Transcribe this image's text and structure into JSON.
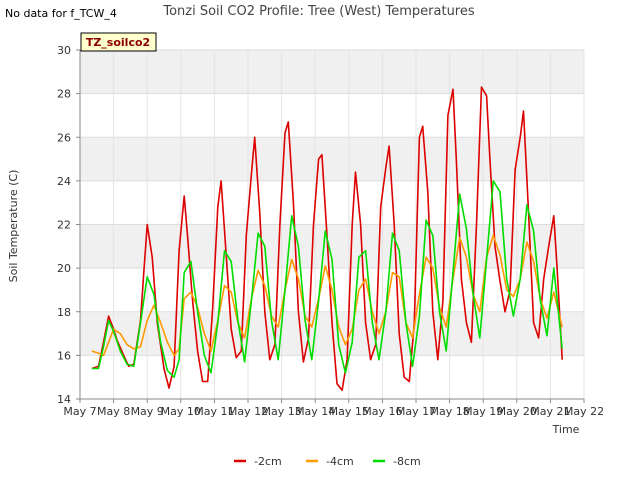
{
  "chart_data": {
    "type": "line",
    "title": "Tonzi Soil CO2 Profile: Tree (West) Temperatures",
    "corner_note": "No data for f_TCW_4",
    "badge": "TZ_soilco2",
    "xlabel": "Time",
    "ylabel": "Soil Temperature (C)",
    "xlim": [
      7.0,
      22.0
    ],
    "ylim": [
      14,
      30
    ],
    "x_ticks": [
      7,
      8,
      9,
      10,
      11,
      12,
      13,
      14,
      15,
      16,
      17,
      18,
      19,
      20,
      21,
      22
    ],
    "x_tick_labels": [
      "May 7",
      "May 8",
      "May 9",
      "May 10",
      "May 11",
      "May 12",
      "May 13",
      "May 14",
      "May 15",
      "May 16",
      "May 17",
      "May 18",
      "May 19",
      "May 20",
      "May 21",
      "May 22"
    ],
    "y_ticks": [
      14,
      16,
      18,
      20,
      22,
      24,
      26,
      28,
      30
    ],
    "y_tick_labels": [
      "14",
      "16",
      "18",
      "20",
      "22",
      "24",
      "26",
      "28",
      "30"
    ],
    "grid": true,
    "legend_position": "bottom-center",
    "colors": {
      "plot_bg": "#f0f0f0",
      "band_alt": "#ffffff",
      "badge_bg": "#ffffcc",
      "badge_border": "#000000"
    },
    "series": [
      {
        "name": "-2cm",
        "color": "#dd0000",
        "x": [
          7.35,
          7.55,
          7.7,
          7.85,
          8.0,
          8.1,
          8.3,
          8.45,
          8.6,
          8.8,
          8.9,
          9.0,
          9.15,
          9.3,
          9.5,
          9.65,
          9.8,
          9.95,
          10.1,
          10.2,
          10.35,
          10.5,
          10.65,
          10.8,
          10.95,
          11.1,
          11.2,
          11.35,
          11.5,
          11.65,
          11.8,
          11.95,
          12.1,
          12.2,
          12.35,
          12.5,
          12.65,
          12.8,
          12.95,
          13.1,
          13.2,
          13.35,
          13.5,
          13.65,
          13.8,
          13.95,
          14.1,
          14.2,
          14.35,
          14.5,
          14.65,
          14.8,
          14.95,
          15.1,
          15.2,
          15.35,
          15.5,
          15.65,
          15.8,
          15.95,
          16.1,
          16.2,
          16.35,
          16.5,
          16.65,
          16.8,
          16.95,
          17.1,
          17.2,
          17.35,
          17.5,
          17.65,
          17.8,
          17.95,
          18.1,
          18.2,
          18.35,
          18.5,
          18.65,
          18.8,
          18.95,
          19.1,
          19.2,
          19.35,
          19.5,
          19.65,
          19.8,
          19.95,
          20.1,
          20.2,
          20.35,
          20.5,
          20.65,
          20.8,
          20.95,
          21.1,
          21.2,
          21.35
        ],
        "y": [
          15.4,
          15.5,
          16.6,
          17.8,
          17.2,
          16.7,
          16.0,
          15.5,
          15.6,
          17.6,
          19.8,
          22.0,
          20.5,
          17.5,
          15.4,
          14.5,
          15.5,
          20.8,
          23.3,
          21.5,
          18.5,
          16.2,
          14.8,
          14.8,
          18.2,
          22.8,
          24.0,
          20.6,
          17.2,
          15.9,
          16.2,
          21.5,
          24.3,
          26.0,
          22.5,
          18.0,
          15.8,
          16.5,
          22.0,
          26.2,
          26.7,
          23.0,
          18.0,
          15.7,
          16.8,
          22.0,
          25.0,
          25.2,
          21.5,
          17.5,
          14.7,
          14.4,
          15.8,
          22.0,
          24.4,
          22.0,
          17.5,
          15.8,
          16.5,
          22.8,
          24.6,
          25.6,
          22.0,
          17.0,
          15.0,
          14.8,
          17.5,
          26.0,
          26.5,
          23.5,
          18.0,
          15.8,
          18.5,
          27.0,
          28.2,
          25.0,
          19.5,
          17.5,
          16.6,
          22.0,
          28.3,
          27.9,
          25.0,
          21.0,
          19.4,
          18.0,
          19.0,
          24.5,
          26.0,
          27.2,
          22.5,
          17.5,
          16.8,
          19.5,
          21.0,
          22.4,
          20.0,
          15.8
        ]
      },
      {
        "name": "-4cm",
        "color": "#ff9900",
        "x": [
          7.35,
          7.55,
          7.7,
          7.85,
          8.0,
          8.2,
          8.4,
          8.6,
          8.8,
          9.0,
          9.2,
          9.4,
          9.6,
          9.8,
          9.95,
          10.1,
          10.3,
          10.5,
          10.7,
          10.9,
          11.1,
          11.3,
          11.5,
          11.7,
          11.9,
          12.1,
          12.3,
          12.5,
          12.7,
          12.9,
          13.1,
          13.3,
          13.5,
          13.7,
          13.9,
          14.1,
          14.3,
          14.5,
          14.7,
          14.9,
          15.1,
          15.3,
          15.5,
          15.7,
          15.9,
          16.1,
          16.3,
          16.5,
          16.7,
          16.9,
          17.1,
          17.3,
          17.5,
          17.7,
          17.9,
          18.1,
          18.3,
          18.5,
          18.7,
          18.9,
          19.1,
          19.3,
          19.5,
          19.7,
          19.9,
          20.1,
          20.3,
          20.5,
          20.7,
          20.9,
          21.1,
          21.35
        ],
        "y": [
          16.2,
          16.1,
          16.0,
          16.6,
          17.2,
          17.0,
          16.5,
          16.3,
          16.4,
          17.6,
          18.3,
          17.5,
          16.6,
          16.0,
          16.3,
          18.6,
          18.9,
          18.2,
          17.0,
          16.2,
          17.6,
          19.2,
          18.9,
          17.5,
          16.8,
          18.6,
          19.9,
          19.2,
          17.8,
          17.3,
          19.0,
          20.4,
          19.5,
          17.8,
          17.3,
          18.6,
          20.1,
          19.0,
          17.3,
          16.5,
          17.2,
          19.0,
          19.5,
          18.0,
          17.0,
          18.0,
          19.8,
          19.6,
          17.5,
          16.8,
          18.8,
          20.5,
          20.0,
          18.2,
          17.3,
          19.5,
          21.4,
          20.5,
          18.8,
          18.0,
          20.5,
          21.5,
          20.6,
          19.0,
          18.7,
          19.5,
          21.2,
          20.3,
          18.6,
          17.7,
          18.9,
          17.3
        ]
      },
      {
        "name": "-8cm",
        "color": "#00dd00",
        "x": [
          7.35,
          7.55,
          7.7,
          7.85,
          8.0,
          8.2,
          8.4,
          8.6,
          8.8,
          9.0,
          9.2,
          9.4,
          9.6,
          9.8,
          9.95,
          10.1,
          10.3,
          10.5,
          10.7,
          10.9,
          11.1,
          11.3,
          11.5,
          11.7,
          11.9,
          12.1,
          12.3,
          12.5,
          12.7,
          12.9,
          13.1,
          13.3,
          13.5,
          13.7,
          13.9,
          14.1,
          14.3,
          14.5,
          14.7,
          14.9,
          15.1,
          15.3,
          15.5,
          15.7,
          15.9,
          16.1,
          16.3,
          16.5,
          16.7,
          16.9,
          17.1,
          17.3,
          17.5,
          17.7,
          17.9,
          18.1,
          18.3,
          18.5,
          18.7,
          18.9,
          19.1,
          19.3,
          19.5,
          19.7,
          19.9,
          20.1,
          20.3,
          20.5,
          20.7,
          20.9,
          21.1,
          21.35
        ],
        "y": [
          15.4,
          15.4,
          16.4,
          17.6,
          17.1,
          16.2,
          15.6,
          15.5,
          17.5,
          19.6,
          18.8,
          16.6,
          15.3,
          15.0,
          15.8,
          19.8,
          20.3,
          18.0,
          16.0,
          15.2,
          17.5,
          20.8,
          20.3,
          17.6,
          15.7,
          18.5,
          21.6,
          21.0,
          17.6,
          15.8,
          19.0,
          22.4,
          21.0,
          17.6,
          15.8,
          18.5,
          21.7,
          20.4,
          16.5,
          15.2,
          16.6,
          20.5,
          20.8,
          17.5,
          15.8,
          18.0,
          21.6,
          20.8,
          17.5,
          15.5,
          17.8,
          22.2,
          21.5,
          18.0,
          16.2,
          19.8,
          23.4,
          21.8,
          18.8,
          16.8,
          20.4,
          24.0,
          23.5,
          19.5,
          17.8,
          19.5,
          22.9,
          21.7,
          18.5,
          16.9,
          20.0,
          16.3
        ]
      }
    ]
  }
}
